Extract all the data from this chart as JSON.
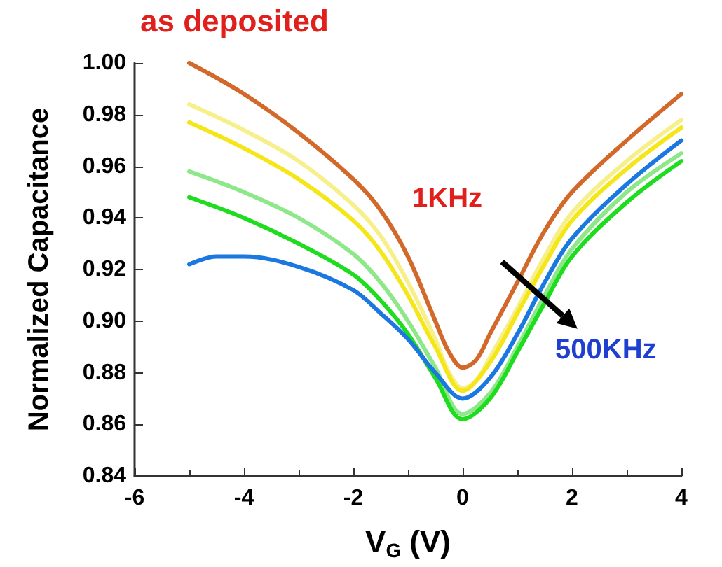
{
  "chart_data": {
    "type": "line",
    "xlabel": "V$_{G}$ (V)",
    "ylabel": "Normalized Capacitance",
    "annotations": [
      "as deposited",
      "1KHz",
      "500KHz"
    ],
    "xlim": [
      -6,
      4
    ],
    "xticks": [
      -6,
      -4,
      -2,
      0,
      2,
      4
    ],
    "ylim": [
      0.84,
      1.0
    ],
    "yticks": [
      0.84,
      0.86,
      0.88,
      {
        "value": 0.9,
        "label": "0.90"
      },
      0.92,
      0.94,
      0.96,
      0.98,
      {
        "value": 1.0,
        "label": "1.00"
      }
    ],
    "grid": false,
    "marker": "none",
    "line_style": "solid",
    "series": [
      {
        "color": "#d2692a",
        "x": [
          -5,
          -4,
          -3,
          -2,
          -1.5,
          -1,
          -0.5,
          -0.25,
          0,
          0.25,
          0.5,
          1,
          1.5,
          2,
          3,
          4
        ],
        "values": [
          1.0,
          0.988,
          0.973,
          0.955,
          0.943,
          0.925,
          0.9,
          0.888,
          0.882,
          0.885,
          0.895,
          0.915,
          0.935,
          0.95,
          0.97,
          0.988
        ]
      },
      {
        "color": "#f7f08a",
        "x": [
          -5,
          -4,
          -3,
          -2,
          -1.5,
          -1,
          -0.5,
          -0.25,
          0,
          0.25,
          0.5,
          1,
          1.5,
          2,
          3,
          4
        ],
        "values": [
          0.984,
          0.974,
          0.962,
          0.945,
          0.933,
          0.915,
          0.893,
          0.88,
          0.874,
          0.877,
          0.886,
          0.905,
          0.925,
          0.942,
          0.962,
          0.978
        ]
      },
      {
        "color": "#f5e61a",
        "x": [
          -5,
          -4,
          -3,
          -2,
          -1.5,
          -1,
          -0.5,
          0,
          0.5,
          1,
          1.5,
          2,
          3,
          4
        ],
        "values": [
          0.977,
          0.967,
          0.955,
          0.939,
          0.927,
          0.91,
          0.89,
          0.873,
          0.884,
          0.903,
          0.922,
          0.939,
          0.959,
          0.975
        ]
      },
      {
        "color": "#8ee88a",
        "x": [
          -5,
          -4,
          -3,
          -2,
          -1.5,
          -1,
          -0.5,
          0,
          0.5,
          1,
          1.5,
          2,
          3,
          4
        ],
        "values": [
          0.958,
          0.95,
          0.94,
          0.926,
          0.915,
          0.9,
          0.882,
          0.864,
          0.872,
          0.89,
          0.91,
          0.928,
          0.95,
          0.965
        ]
      },
      {
        "color": "#1edc1e",
        "x": [
          -5,
          -4,
          -3,
          -2,
          -1.5,
          -1,
          -0.5,
          0,
          0.5,
          1,
          1.5,
          2,
          3,
          4
        ],
        "values": [
          0.948,
          0.94,
          0.93,
          0.918,
          0.908,
          0.895,
          0.878,
          0.862,
          0.87,
          0.888,
          0.907,
          0.925,
          0.946,
          0.962
        ]
      },
      {
        "color": "#1a78e0",
        "x": [
          -5,
          -4.5,
          -4,
          -3,
          -2,
          -1.5,
          -1,
          -0.5,
          0,
          0.5,
          1,
          1.5,
          2,
          3,
          4
        ],
        "values": [
          0.922,
          0.925,
          0.925,
          0.921,
          0.912,
          0.903,
          0.893,
          0.88,
          0.87,
          0.878,
          0.895,
          0.915,
          0.932,
          0.953,
          0.97
        ]
      }
    ]
  }
}
